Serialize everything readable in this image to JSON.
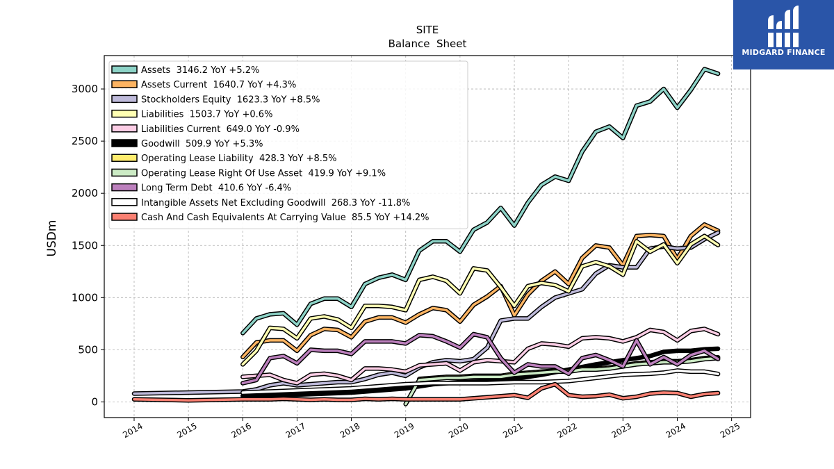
{
  "chart_data": {
    "type": "line",
    "title": "SITE",
    "subtitle": "Balance  Sheet",
    "ylabel": "USDm",
    "xlabel": "",
    "ylim": [
      -150,
      3320
    ],
    "xlim": [
      2013.45,
      2025.35
    ],
    "xticks": [
      "2014",
      "2015",
      "2016",
      "2017",
      "2018",
      "2019",
      "2020",
      "2021",
      "2022",
      "2023",
      "2024",
      "2025"
    ],
    "yticks": [
      "0",
      "500",
      "1000",
      "1500",
      "2000",
      "2500",
      "3000"
    ],
    "grid": true,
    "legend_position": "top-left",
    "series": [
      {
        "name": "Assets",
        "label": "Assets  3146.2 YoY +5.2%",
        "color": "#8dd3c7",
        "x": [
          2016.0,
          2016.25,
          2016.5,
          2016.75,
          2017.0,
          2017.25,
          2017.5,
          2017.75,
          2018.0,
          2018.25,
          2018.5,
          2018.75,
          2019.0,
          2019.25,
          2019.5,
          2019.75,
          2020.0,
          2020.25,
          2020.5,
          2020.75,
          2021.0,
          2021.25,
          2021.5,
          2021.75,
          2022.0,
          2022.25,
          2022.5,
          2022.75,
          2023.0,
          2023.25,
          2023.5,
          2023.75,
          2024.0,
          2024.25,
          2024.5,
          2024.75
        ],
        "y": [
          660,
          800,
          840,
          850,
          740,
          940,
          990,
          990,
          910,
          1130,
          1190,
          1220,
          1170,
          1450,
          1540,
          1540,
          1440,
          1650,
          1720,
          1860,
          1690,
          1910,
          2080,
          2160,
          2120,
          2400,
          2590,
          2640,
          2530,
          2840,
          2880,
          3000,
          2820,
          2990,
          3190,
          3146
        ]
      },
      {
        "name": "Assets Current",
        "label": "Assets Current  1640.7 YoY +4.3%",
        "color": "#fdb462",
        "x": [
          2016.0,
          2016.25,
          2016.5,
          2016.75,
          2017.0,
          2017.25,
          2017.5,
          2017.75,
          2018.0,
          2018.25,
          2018.5,
          2018.75,
          2019.0,
          2019.25,
          2019.5,
          2019.75,
          2020.0,
          2020.25,
          2020.5,
          2020.75,
          2021.0,
          2021.25,
          2021.5,
          2021.75,
          2022.0,
          2022.25,
          2022.5,
          2022.75,
          2023.0,
          2023.25,
          2023.5,
          2023.75,
          2024.0,
          2024.25,
          2024.5,
          2024.75
        ],
        "y": [
          430,
          570,
          590,
          590,
          490,
          640,
          700,
          690,
          620,
          770,
          810,
          810,
          760,
          840,
          900,
          880,
          770,
          930,
          1010,
          1110,
          830,
          1030,
          1160,
          1250,
          1130,
          1380,
          1500,
          1480,
          1310,
          1590,
          1600,
          1590,
          1370,
          1590,
          1700,
          1641
        ]
      },
      {
        "name": "Stockholders Equity",
        "label": "Stockholders Equity  1623.3 YoY +8.5%",
        "color": "#bebada",
        "x": [
          2014.0,
          2016.0,
          2016.25,
          2016.5,
          2016.75,
          2017.0,
          2017.25,
          2017.5,
          2017.75,
          2018.0,
          2018.25,
          2018.5,
          2018.75,
          2019.0,
          2019.25,
          2019.5,
          2019.75,
          2020.0,
          2020.25,
          2020.5,
          2020.75,
          2021.0,
          2021.25,
          2021.5,
          2021.75,
          2022.0,
          2022.25,
          2022.5,
          2022.75,
          2023.0,
          2023.25,
          2023.5,
          2023.75,
          2024.0,
          2024.25,
          2024.5,
          2024.75
        ],
        "y": [
          80,
          100,
          120,
          160,
          180,
          160,
          170,
          180,
          190,
          190,
          220,
          260,
          280,
          250,
          330,
          380,
          400,
          390,
          410,
          520,
          780,
          800,
          800,
          910,
          1000,
          1040,
          1080,
          1230,
          1310,
          1290,
          1290,
          1470,
          1490,
          1470,
          1480,
          1560,
          1623
        ]
      },
      {
        "name": "Liabilities",
        "label": "Liabilities  1503.7 YoY +0.6%",
        "color": "#ffffb3",
        "x": [
          2016.0,
          2016.25,
          2016.5,
          2016.75,
          2017.0,
          2017.25,
          2017.5,
          2017.75,
          2018.0,
          2018.25,
          2018.5,
          2018.75,
          2019.0,
          2019.25,
          2019.5,
          2019.75,
          2020.0,
          2020.25,
          2020.5,
          2020.75,
          2021.0,
          2021.25,
          2021.5,
          2021.75,
          2022.0,
          2022.25,
          2022.5,
          2022.75,
          2023.0,
          2023.25,
          2023.5,
          2023.75,
          2024.0,
          2024.25,
          2024.5,
          2024.75
        ],
        "y": [
          360,
          490,
          710,
          700,
          610,
          800,
          820,
          790,
          710,
          920,
          920,
          910,
          880,
          1170,
          1200,
          1160,
          1040,
          1280,
          1260,
          1100,
          920,
          1110,
          1140,
          1120,
          1060,
          1300,
          1340,
          1300,
          1220,
          1540,
          1440,
          1510,
          1330,
          1510,
          1590,
          1504
        ]
      },
      {
        "name": "Liabilities Current",
        "label": "Liabilities Current  649.0 YoY -0.9%",
        "color": "#fccde5",
        "x": [
          2016.0,
          2016.25,
          2016.5,
          2016.75,
          2017.0,
          2017.25,
          2017.5,
          2017.75,
          2018.0,
          2018.25,
          2018.5,
          2018.75,
          2019.0,
          2019.25,
          2019.5,
          2019.75,
          2020.0,
          2020.25,
          2020.5,
          2020.75,
          2021.0,
          2021.25,
          2021.5,
          2021.75,
          2022.0,
          2022.25,
          2022.5,
          2022.75,
          2023.0,
          2023.25,
          2023.5,
          2023.75,
          2024.0,
          2024.25,
          2024.5,
          2024.75
        ],
        "y": [
          240,
          250,
          260,
          210,
          180,
          260,
          270,
          250,
          210,
          320,
          320,
          310,
          290,
          350,
          360,
          370,
          300,
          380,
          400,
          390,
          380,
          510,
          560,
          550,
          530,
          610,
          620,
          610,
          580,
          620,
          690,
          670,
          590,
          680,
          700,
          649
        ]
      },
      {
        "name": "Goodwill",
        "label": "Goodwill  509.9 YoY +5.3%",
        "color": "#000000",
        "x": [
          2016.0,
          2016.5,
          2017.0,
          2017.5,
          2018.0,
          2018.5,
          2019.0,
          2019.5,
          2020.0,
          2020.5,
          2021.0,
          2021.5,
          2022.0,
          2022.5,
          2023.0,
          2023.5,
          2023.75,
          2024.0,
          2024.25,
          2024.5,
          2024.75
        ],
        "y": [
          60,
          65,
          70,
          80,
          90,
          110,
          130,
          170,
          190,
          200,
          220,
          260,
          310,
          360,
          400,
          440,
          480,
          490,
          490,
          505,
          510
        ]
      },
      {
        "name": "Operating Lease Liability",
        "label": "Operating Lease Liability  428.3 YoY +8.5%",
        "color": "#ffed6f",
        "x": [
          2019.25,
          2019.5,
          2019.75,
          2020.0,
          2020.25,
          2020.5,
          2020.75,
          2021.0,
          2021.25,
          2021.5,
          2021.75,
          2022.0,
          2022.25,
          2022.5,
          2022.75,
          2023.0,
          2023.25,
          2023.5,
          2023.75,
          2024.0,
          2024.25,
          2024.5,
          2024.75
        ],
        "y": [
          220,
          230,
          240,
          240,
          250,
          250,
          250,
          270,
          280,
          290,
          300,
          300,
          320,
          320,
          330,
          350,
          370,
          380,
          390,
          390,
          400,
          420,
          428
        ]
      },
      {
        "name": "Operating Lease Right Of Use Asset",
        "label": "Operating Lease Right Of Use Asset  419.9 YoY +9.1%",
        "color": "#ccebc5",
        "x": [
          2019.0,
          2019.25,
          2019.5,
          2019.75,
          2020.0,
          2020.25,
          2020.5,
          2020.75,
          2021.0,
          2021.25,
          2021.5,
          2021.75,
          2022.0,
          2022.25,
          2022.5,
          2022.75,
          2023.0,
          2023.25,
          2023.5,
          2023.75,
          2024.0,
          2024.25,
          2024.5,
          2024.75
        ],
        "y": [
          -20,
          210,
          220,
          230,
          230,
          240,
          240,
          240,
          260,
          270,
          280,
          290,
          290,
          310,
          310,
          320,
          340,
          360,
          370,
          380,
          380,
          390,
          410,
          420
        ]
      },
      {
        "name": "Long Term Debt",
        "label": "Long Term Debt  410.6 YoY -6.4%",
        "color": "#bc80bd",
        "x": [
          2016.0,
          2016.25,
          2016.5,
          2016.75,
          2017.0,
          2017.25,
          2017.5,
          2017.75,
          2018.0,
          2018.25,
          2018.5,
          2018.75,
          2019.0,
          2019.25,
          2019.5,
          2019.75,
          2020.0,
          2020.25,
          2020.5,
          2020.75,
          2021.0,
          2021.25,
          2021.5,
          2021.75,
          2022.0,
          2022.25,
          2022.5,
          2022.75,
          2023.0,
          2023.25,
          2023.5,
          2023.75,
          2024.0,
          2024.25,
          2024.5,
          2024.75
        ],
        "y": [
          180,
          210,
          420,
          440,
          370,
          500,
          490,
          490,
          460,
          580,
          580,
          580,
          560,
          640,
          630,
          580,
          520,
          650,
          620,
          420,
          280,
          360,
          340,
          340,
          270,
          420,
          450,
          400,
          340,
          590,
          360,
          430,
          360,
          450,
          490,
          411
        ]
      },
      {
        "name": "Intangible Assets Net Excluding Goodwill",
        "label": "Intangible Assets Net Excluding Goodwill  268.3 YoY -11.8%",
        "color": "#ffffff",
        "x": [
          2016.0,
          2016.5,
          2017.0,
          2017.5,
          2018.0,
          2018.5,
          2019.0,
          2019.5,
          2020.0,
          2020.5,
          2021.0,
          2021.5,
          2022.0,
          2022.5,
          2023.0,
          2023.5,
          2023.75,
          2024.0,
          2024.25,
          2024.5,
          2024.75
        ],
        "y": [
          90,
          100,
          110,
          120,
          130,
          150,
          170,
          180,
          180,
          180,
          190,
          190,
          200,
          230,
          260,
          270,
          280,
          300,
          290,
          290,
          268
        ]
      },
      {
        "name": "Cash And Cash Equivalents At Carrying Value",
        "label": "Cash And Cash Equivalents At Carrying Value  85.5 YoY +14.2%",
        "color": "#fb8072",
        "x": [
          2014.0,
          2014.5,
          2015.0,
          2015.5,
          2016.0,
          2016.5,
          2016.75,
          2017.0,
          2017.25,
          2017.5,
          2017.75,
          2018.0,
          2018.25,
          2018.5,
          2018.75,
          2019.0,
          2019.5,
          2020.0,
          2020.5,
          2021.0,
          2021.25,
          2021.5,
          2021.75,
          2022.0,
          2022.25,
          2022.5,
          2022.75,
          2023.0,
          2023.25,
          2023.5,
          2023.75,
          2024.0,
          2024.25,
          2024.5,
          2024.75
        ],
        "y": [
          25,
          20,
          15,
          20,
          25,
          25,
          30,
          25,
          20,
          25,
          20,
          20,
          30,
          25,
          30,
          25,
          25,
          25,
          45,
          65,
          40,
          130,
          170,
          65,
          50,
          55,
          70,
          35,
          50,
          80,
          90,
          85,
          50,
          75,
          85
        ]
      }
    ]
  },
  "logo": {
    "text": "MIDGARD FINANCE",
    "color": "#2a55a8"
  }
}
